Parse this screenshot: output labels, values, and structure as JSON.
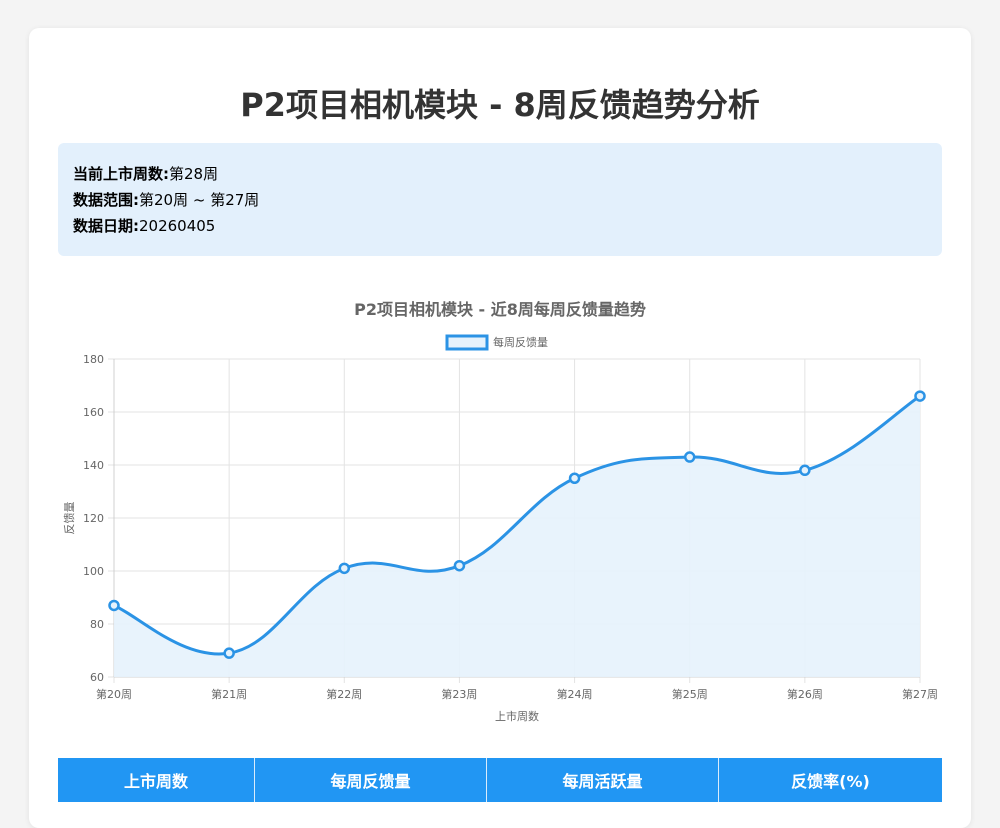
{
  "page": {
    "title": "P2项目相机模块 - 8周反馈趋势分析"
  },
  "info": {
    "current_week_label": "当前上市周数:",
    "current_week_value": "第28周",
    "range_label": "数据范围:",
    "range_value": "第20周 ~ 第27周",
    "date_label": "数据日期:",
    "date_value": "20260405"
  },
  "chart_data": {
    "type": "line",
    "title": "P2项目相机模块 - 近8周每周反馈量趋势",
    "categories": [
      "第20周",
      "第21周",
      "第22周",
      "第23周",
      "第24周",
      "第25周",
      "第26周",
      "第27周"
    ],
    "series": [
      {
        "name": "每周反馈量",
        "values": [
          87,
          69,
          101,
          102,
          135,
          143,
          138,
          166
        ]
      }
    ],
    "xlabel": "上市周数",
    "ylabel": "反馈量",
    "ylim": [
      60,
      180
    ],
    "yticks": [
      60,
      80,
      100,
      120,
      140,
      160,
      180
    ],
    "grid": true,
    "legend": "top-center",
    "fill": true,
    "colors": {
      "line": "#2b93e5",
      "fill": "#e5f2fc",
      "grid": "#e3e3e3"
    }
  },
  "table": {
    "headers": [
      "上市周数",
      "每周反馈量",
      "每周活跃量",
      "反馈率(%)"
    ]
  }
}
